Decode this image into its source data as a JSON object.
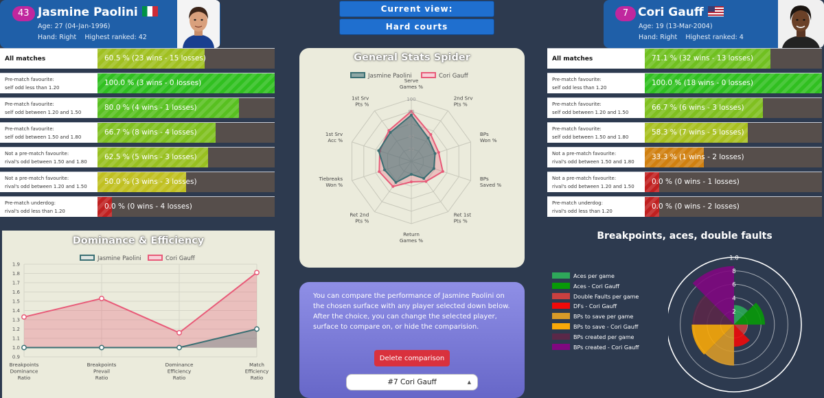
{
  "player1": {
    "rank": "43",
    "name": "Jasmine Paolini",
    "flag": "italy-flag-icon",
    "age": "Age: 27 (04-Jan-1996)",
    "details": "Hand: Right    Highest ranked: 42"
  },
  "player2": {
    "rank": "7",
    "name": "Cori Gauff",
    "flag": "usa-flag-icon",
    "age": "Age: 19 (13-Mar-2004)",
    "details": "Hand: Right    Highest ranked: 4"
  },
  "current_view": {
    "label": "Current view:",
    "value": "Hard courts"
  },
  "player1_stats": [
    {
      "label1": "All matches",
      "label2": "",
      "text": "60.5 % (23 wins - 15 losses)",
      "pct": 60.5,
      "color": "#a0c020"
    },
    {
      "label1": "Pre-match favourite:",
      "label2": "self odd less than 1.20",
      "text": "100.0 % (3 wins - 0 losses)",
      "pct": 100.0,
      "color": "#30c020"
    },
    {
      "label1": "Pre-match favourite:",
      "label2": "self odd between 1.20 and 1.50",
      "text": "80.0 % (4 wins - 1 losses)",
      "pct": 80.0,
      "color": "#58c020"
    },
    {
      "label1": "Pre-match favourite:",
      "label2": "self odd between 1.50 and 1.80",
      "text": "66.7 % (8 wins - 4 losses)",
      "pct": 66.7,
      "color": "#80c020"
    },
    {
      "label1": "Not a pre-match favourite:",
      "label2": "rival's odd between 1.50 and 1.80",
      "text": "62.5 % (5 wins - 3 losses)",
      "pct": 62.5,
      "color": "#98c020"
    },
    {
      "label1": "Not a pre-match favourite:",
      "label2": "rival's odd between 1.20 and 1.50",
      "text": "50.0 % (3 wins - 3 losses)",
      "pct": 50.0,
      "color": "#c0c020"
    },
    {
      "label1": "Pre-match underdog:",
      "label2": "rival's odd less than 1.20",
      "text": "0.0 % (0 wins - 4 losses)",
      "pct": 0.0,
      "color": "#c02020"
    }
  ],
  "player2_stats": [
    {
      "label1": "All matches",
      "label2": "",
      "text": "71.1 % (32 wins - 13 losses)",
      "pct": 71.1,
      "color": "#70c020"
    },
    {
      "label1": "Pre-match favourite:",
      "label2": "self odd less than 1.20",
      "text": "100.0 % (18 wins - 0 losses)",
      "pct": 100.0,
      "color": "#30c020"
    },
    {
      "label1": "Pre-match favourite:",
      "label2": "self odd between 1.20 and 1.50",
      "text": "66.7 % (6 wins - 3 losses)",
      "pct": 66.7,
      "color": "#80c020"
    },
    {
      "label1": "Pre-match favourite:",
      "label2": "self odd between 1.50 and 1.80",
      "text": "58.3 % (7 wins - 5 losses)",
      "pct": 58.3,
      "color": "#a8c020"
    },
    {
      "label1": "Not a pre-match favourite:",
      "label2": "rival's odd between 1.50 and 1.80",
      "text": "33.3 % (1 wins - 2 losses)",
      "pct": 33.3,
      "color": "#d08010"
    },
    {
      "label1": "Not a pre-match favourite:",
      "label2": "rival's odd between 1.20 and 1.50",
      "text": "0.0 % (0 wins - 1 losses)",
      "pct": 0.0,
      "color": "#c02020"
    },
    {
      "label1": "Pre-match underdog:",
      "label2": "rival's odd less than 1.20",
      "text": "0.0 % (0 wins - 2 losses)",
      "pct": 0.0,
      "color": "#c02020"
    }
  ],
  "compare": {
    "text": "You can compare the performance of Jasmine Paolini on the chosen surface with any player selected down below. After the choice, you can change the selected player, surface to compare on, or hide the comparision.",
    "delete_label": "Delete comparison",
    "selected_player": "#7 Cori Gauff"
  },
  "chart_data": [
    {
      "type": "radar",
      "title": "General Stats Spider",
      "axes": [
        "Serve Games %",
        "2nd Srv Pts %",
        "BPs Won %",
        "BPs Saved %",
        "Ret 1st Pts %",
        "Return Games %",
        "Ret 2nd Pts %",
        "Tiebreaks Won %",
        "1st Srv Acc %",
        "1st Srv Pts %"
      ],
      "axis_lines": [
        [
          "Serve",
          "Games %"
        ],
        [
          "2nd Srv",
          "Pts %"
        ],
        [
          "BPs",
          "Won %"
        ],
        [
          "BPs",
          "Saved %"
        ],
        [
          "Ret 1st",
          "Pts %"
        ],
        [
          "Return",
          "Games %"
        ],
        [
          "Ret 2nd",
          "Pts %"
        ],
        [
          "Tiebreaks",
          "Won %"
        ],
        [
          "1st Srv",
          "Acc %"
        ],
        [
          "1st Srv",
          "Pts %"
        ]
      ],
      "rlim": [
        0,
        100
      ],
      "ticks": [
        20,
        40,
        60,
        80,
        100
      ],
      "series": [
        {
          "name": "Jasmine Paolini",
          "color": "#3a6f73",
          "values": [
            74,
            46,
            40,
            38,
            34,
            21,
            42,
            45,
            55,
            57
          ]
        },
        {
          "name": "Cori Gauff",
          "color": "#e85a78",
          "values": [
            80,
            53,
            46,
            53,
            40,
            33,
            50,
            54,
            53,
            61
          ]
        }
      ]
    },
    {
      "type": "line",
      "title": "Dominance & Efficiency",
      "categories": [
        [
          "Breakpoints",
          "Dominance",
          "Ratio"
        ],
        [
          "Breakpoints",
          "Prevail",
          "Ratio"
        ],
        [
          "Dominance",
          "Efficiency",
          "Ratio"
        ],
        [
          "Match",
          "Efficiency",
          "Ratio"
        ]
      ],
      "ylim": [
        0.9,
        1.9
      ],
      "yticks": [
        "1.9",
        "1.8",
        "1.7",
        "1.6",
        "1.5",
        "1.4",
        "1.3",
        "1.2",
        "1.1",
        "1.0",
        "0.9"
      ],
      "series": [
        {
          "name": "Jasmine Paolini",
          "color": "#3a6f73",
          "values": [
            1.0,
            1.0,
            1.0,
            1.2
          ]
        },
        {
          "name": "Cori Gauff",
          "color": "#e85a78",
          "values": [
            1.33,
            1.53,
            1.16,
            1.81
          ]
        }
      ]
    },
    {
      "type": "polar-area",
      "title": "Breakpoints, aces, double faults",
      "rlim": [
        0,
        10
      ],
      "ticks": [
        "2",
        "4",
        "6",
        "8",
        "1.0"
      ],
      "series": [
        {
          "name": "Aces per game",
          "color": "#2ea85a",
          "value": 2.9
        },
        {
          "name": "Aces - Cori Gauff",
          "color": "#089a08",
          "value": 4.6
        },
        {
          "name": "Double Faults per game",
          "color": "#c84040",
          "value": 2.0
        },
        {
          "name": "DFs - Cori Gauff",
          "color": "#f00a0a",
          "value": 3.3
        },
        {
          "name": "BPs to save per game",
          "color": "#d89a28",
          "value": 6.1
        },
        {
          "name": "BPs to save - Cori Gauff",
          "color": "#f8a808",
          "value": 6.3
        },
        {
          "name": "BPs created per game",
          "color": "#5a2848",
          "value": 6.2
        },
        {
          "name": "BPs created - Cori Gauff",
          "color": "#800880",
          "value": 8.7
        }
      ]
    }
  ]
}
